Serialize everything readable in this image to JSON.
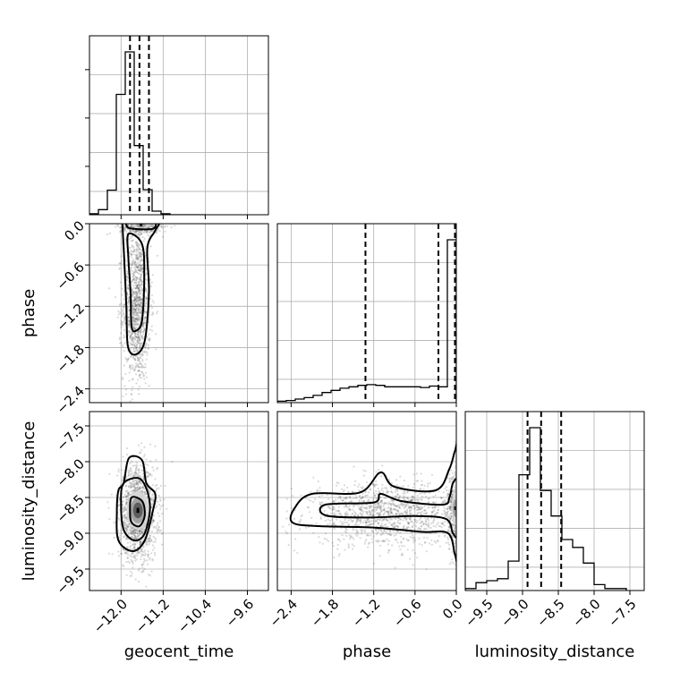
{
  "chart_data": {
    "type": "corner",
    "parameters": [
      {
        "name": "geocent_time",
        "range": [
          -12.6,
          -9.2
        ],
        "ticks": [
          -12.0,
          -11.2,
          -10.4,
          -9.6
        ],
        "tick_labels": [
          "−12.0",
          "−11.2",
          "−10.4",
          "−9.6"
        ],
        "quantiles": [
          -11.83,
          -11.65,
          -11.47
        ],
        "histogram": {
          "bin_edges": [
            -12.6,
            -12.43,
            -12.26,
            -12.09,
            -11.92,
            -11.75,
            -11.58,
            -11.41,
            -11.24,
            -11.07,
            -10.9,
            -10.73,
            -10.56,
            -10.39
          ],
          "counts": [
            2,
            10,
            48,
            235,
            318,
            135,
            49,
            7,
            2,
            0,
            0,
            0,
            0
          ]
        }
      },
      {
        "name": "phase",
        "range": [
          -2.6,
          0.0
        ],
        "ticks": [
          -2.4,
          -1.8,
          -1.2,
          -0.6,
          0.0
        ],
        "tick_labels": [
          "−2.4",
          "−1.8",
          "−1.2",
          "−0.6",
          "0.0"
        ],
        "quantiles": [
          -1.32,
          -0.26,
          -0.02
        ],
        "histogram": {
          "bin_edges": [
            -2.6,
            -2.47,
            -2.34,
            -2.21,
            -2.08,
            -1.95,
            -1.82,
            -1.69,
            -1.56,
            -1.43,
            -1.3,
            -1.17,
            -1.04,
            -0.91,
            -0.78,
            -0.65,
            -0.52,
            -0.39,
            -0.26,
            -0.13,
            0.0
          ],
          "counts": [
            2,
            3,
            5,
            7,
            10,
            14,
            17,
            20,
            22,
            24,
            25,
            24,
            22,
            22,
            22,
            22,
            21,
            23,
            22,
            226
          ]
        }
      },
      {
        "name": "luminosity_distance",
        "range": [
          -9.8,
          -7.3
        ],
        "ticks": [
          -9.5,
          -9.0,
          -8.5,
          -8.0,
          -7.5
        ],
        "tick_labels": [
          "−9.5",
          "−9.0",
          "−8.5",
          "−8.0",
          "−7.5"
        ],
        "quantiles": [
          -8.93,
          -8.74,
          -8.46
        ],
        "histogram": {
          "bin_edges": [
            -9.8,
            -9.65,
            -9.5,
            -9.35,
            -9.2,
            -9.05,
            -8.9,
            -8.75,
            -8.6,
            -8.45,
            -8.3,
            -8.15,
            -8.0,
            -7.85,
            -7.7,
            -7.55
          ],
          "counts": [
            1,
            4,
            5,
            6,
            15,
            59,
            83,
            51,
            38,
            26,
            22,
            14,
            3,
            1,
            1
          ]
        }
      }
    ],
    "sample_clusters": [
      {
        "row": 1,
        "col": 0,
        "mean": [
          -11.7,
          -1.2
        ],
        "spread": [
          0.13,
          0.55
        ],
        "n": 1200
      },
      {
        "row": 1,
        "col": 0,
        "mean": [
          -11.62,
          -0.05
        ],
        "spread": [
          0.2,
          0.05
        ],
        "n": 400
      },
      {
        "row": 2,
        "col": 0,
        "mean": [
          -11.68,
          -8.72
        ],
        "spread": [
          0.18,
          0.33
        ],
        "n": 1400
      },
      {
        "row": 2,
        "col": 1,
        "mean": [
          -1.0,
          -8.73
        ],
        "spread": [
          0.55,
          0.22
        ],
        "n": 1300
      },
      {
        "row": 2,
        "col": 1,
        "mean": [
          -0.05,
          -8.65
        ],
        "spread": [
          0.05,
          0.28
        ],
        "n": 300
      }
    ],
    "density_peaks": [
      {
        "row": 1,
        "col": 0,
        "x": -11.62,
        "y": -0.02,
        "peak_w": 0.05,
        "peak_h": 0.03,
        "bands": [
          [
            0.09,
            0.04
          ],
          [
            0.17,
            0.06
          ]
        ]
      },
      {
        "row": 2,
        "col": 0,
        "x": -11.68,
        "y": -8.68,
        "peak_w": 0.05,
        "peak_h": 0.07,
        "bands": [
          [
            0.09,
            0.11
          ],
          [
            0.14,
            0.18
          ],
          [
            0.22,
            0.27
          ]
        ]
      },
      {
        "row": 2,
        "col": 1,
        "x": -0.02,
        "y": -8.65,
        "peak_w": 0.02,
        "peak_h": 0.05,
        "bands": [
          [
            0.03,
            0.12
          ],
          [
            0.05,
            0.2
          ]
        ]
      }
    ],
    "contours": [
      {
        "row": 1,
        "col": 0,
        "levels": [
          [
            [
              -11.88,
              0.03
            ],
            [
              -11.62,
              0.05
            ],
            [
              -11.36,
              0.03
            ],
            [
              -11.38,
              -0.07
            ],
            [
              -11.62,
              -0.08
            ],
            [
              -11.86,
              -0.06
            ]
          ],
          [
            [
              -11.86,
              -0.15
            ],
            [
              -11.6,
              -0.3
            ],
            [
              -11.56,
              -0.8
            ],
            [
              -11.6,
              -1.4
            ],
            [
              -11.7,
              -1.55
            ],
            [
              -11.8,
              -1.5
            ],
            [
              -11.82,
              -1.0
            ],
            [
              -11.86,
              -0.5
            ]
          ],
          [
            [
              -11.95,
              0.05
            ],
            [
              -11.62,
              0.07
            ],
            [
              -11.28,
              0.04
            ],
            [
              -11.35,
              -0.1
            ],
            [
              -11.5,
              -0.35
            ],
            [
              -11.47,
              -1.0
            ],
            [
              -11.55,
              -1.7
            ],
            [
              -11.72,
              -1.9
            ],
            [
              -11.87,
              -1.78
            ],
            [
              -11.9,
              -1.2
            ],
            [
              -11.94,
              -0.5
            ],
            [
              -11.97,
              -0.05
            ]
          ]
        ]
      },
      {
        "row": 2,
        "col": 0,
        "levels": [
          [
            [
              -11.8,
              -8.5
            ],
            [
              -11.6,
              -8.55
            ],
            [
              -11.55,
              -8.75
            ],
            [
              -11.65,
              -8.9
            ],
            [
              -11.8,
              -8.85
            ],
            [
              -11.83,
              -8.7
            ]
          ],
          [
            [
              -11.95,
              -8.3
            ],
            [
              -11.62,
              -8.25
            ],
            [
              -11.45,
              -8.6
            ],
            [
              -11.55,
              -9.0
            ],
            [
              -11.75,
              -9.1
            ],
            [
              -11.95,
              -8.95
            ],
            [
              -12.0,
              -8.6
            ]
          ],
          [
            [
              -11.85,
              -7.95
            ],
            [
              -11.6,
              -7.98
            ],
            [
              -11.52,
              -8.3
            ],
            [
              -11.35,
              -8.45
            ],
            [
              -11.4,
              -8.7
            ],
            [
              -11.55,
              -9.1
            ],
            [
              -11.78,
              -9.25
            ],
            [
              -12.05,
              -9.1
            ],
            [
              -12.08,
              -8.7
            ],
            [
              -12.05,
              -8.4
            ],
            [
              -11.95,
              -8.3
            ]
          ]
        ]
      },
      {
        "row": 2,
        "col": 1,
        "levels": [
          [
            [
              -1.9,
              -8.6
            ],
            [
              -1.2,
              -8.57
            ],
            [
              -1.1,
              -8.45
            ],
            [
              -0.8,
              -8.55
            ],
            [
              -0.2,
              -8.6
            ],
            [
              -0.1,
              -8.5
            ],
            [
              -0.05,
              -8.3
            ],
            [
              0.02,
              -8.3
            ],
            [
              0.02,
              -9.0
            ],
            [
              -0.05,
              -9.0
            ],
            [
              -0.15,
              -8.8
            ],
            [
              -0.6,
              -8.76
            ],
            [
              -1.3,
              -8.78
            ],
            [
              -1.9,
              -8.75
            ]
          ],
          [
            [
              -2.35,
              -8.65
            ],
            [
              -2.1,
              -8.45
            ],
            [
              -1.4,
              -8.43
            ],
            [
              -1.1,
              -8.15
            ],
            [
              -0.9,
              -8.35
            ],
            [
              -0.3,
              -8.4
            ],
            [
              -0.1,
              -8.1
            ],
            [
              -0.02,
              -7.85
            ],
            [
              0.02,
              -7.85
            ],
            [
              0.02,
              -9.3
            ],
            [
              -0.02,
              -9.3
            ],
            [
              -0.12,
              -9.0
            ],
            [
              -0.5,
              -8.98
            ],
            [
              -1.2,
              -8.92
            ],
            [
              -2.0,
              -8.9
            ],
            [
              -2.38,
              -8.85
            ]
          ]
        ]
      }
    ]
  }
}
